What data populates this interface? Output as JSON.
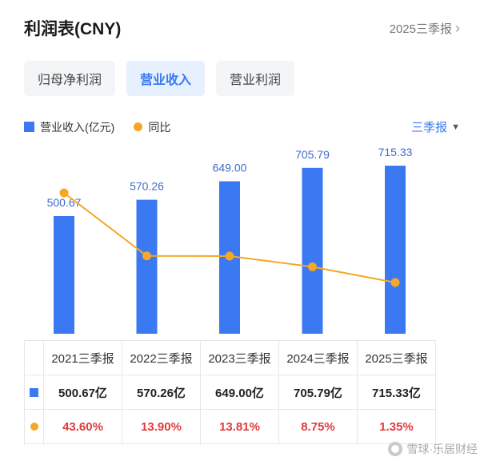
{
  "header": {
    "title": "利润表(CNY)",
    "period_link": "2025三季报",
    "chevron": "›"
  },
  "tabs": [
    {
      "label": "归母净利润",
      "active": false
    },
    {
      "label": "营业收入",
      "active": true
    },
    {
      "label": "营业利润",
      "active": false
    }
  ],
  "legend": {
    "bar_label": "营业收入(亿元)",
    "line_label": "同比",
    "period_selector": "三季报",
    "caret": "▼"
  },
  "chart_data": {
    "type": "bar",
    "categories": [
      "2021三季报",
      "2022三季报",
      "2023三季报",
      "2024三季报",
      "2025三季报"
    ],
    "series": [
      {
        "name": "营业收入(亿元)",
        "type": "bar",
        "values": [
          500.67,
          570.26,
          649.0,
          705.79,
          715.33
        ],
        "unit": "亿元",
        "color": "#3b79f2"
      },
      {
        "name": "同比",
        "type": "line",
        "values": [
          43.6,
          13.9,
          13.81,
          8.75,
          1.35
        ],
        "unit": "%",
        "color": "#f5a726"
      }
    ],
    "title": "利润表(CNY) 营业收入",
    "xlabel": "",
    "ylabel": "",
    "grid": false,
    "legend_position": "top-left",
    "data_labels_on_bars": true
  },
  "table": {
    "columns": [
      "2021三季报",
      "2022三季报",
      "2023三季报",
      "2024三季报",
      "2025三季报"
    ],
    "rows": [
      {
        "icon": "bar-swatch-icon",
        "values": [
          "500.67亿",
          "570.26亿",
          "649.00亿",
          "705.79亿",
          "715.33亿"
        ]
      },
      {
        "icon": "dot-swatch-icon",
        "values": [
          "43.60%",
          "13.90%",
          "13.81%",
          "8.75%",
          "1.35%"
        ]
      }
    ]
  },
  "watermark": "雪球·乐居财经",
  "colors": {
    "accent_blue": "#3b79f2",
    "tab_active_bg": "#e7f0ff",
    "line_orange": "#f5a726",
    "percent_red": "#e23b3b",
    "bar_label_blue": "#3e6cc9"
  }
}
